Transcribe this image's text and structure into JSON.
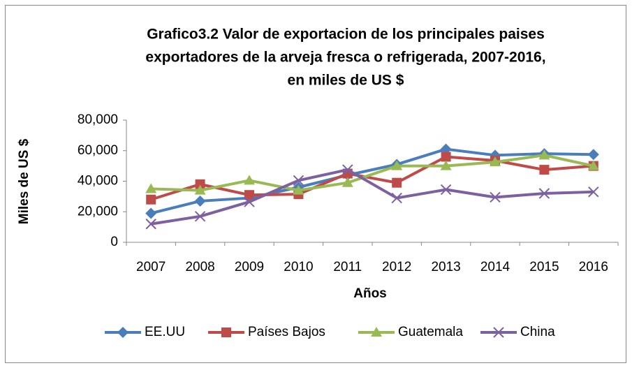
{
  "chart_data": {
    "type": "line",
    "title": [
      "Grafico3.2 Valor de exportacion de los principales paises",
      "exportadores de la arveja fresca o refrigerada, 2007-2016,",
      "en miles de US $"
    ],
    "x_label": "Años",
    "y_label": "Miles de US $",
    "categories": [
      "2007",
      "2008",
      "2009",
      "2010",
      "2011",
      "2012",
      "2013",
      "2014",
      "2015",
      "2016"
    ],
    "series": [
      {
        "name": "EE.UU",
        "color": "#4a7ebb",
        "marker": "diamond",
        "values": [
          19000,
          27000,
          29000,
          36000,
          44000,
          51000,
          61000,
          57000,
          58000,
          57500
        ]
      },
      {
        "name": "Países Bajos",
        "color": "#be4b48",
        "marker": "square",
        "values": [
          28000,
          38000,
          31000,
          31500,
          45000,
          39000,
          56000,
          53500,
          47500,
          50000
        ]
      },
      {
        "name": "Guatemala",
        "color": "#98b954",
        "marker": "triangle",
        "values": [
          35000,
          34000,
          40500,
          34000,
          39000,
          50000,
          50000,
          52500,
          57000,
          50000
        ]
      },
      {
        "name": "China",
        "color": "#7d60a0",
        "marker": "x",
        "values": [
          12000,
          17000,
          26500,
          40500,
          47500,
          29000,
          34500,
          29500,
          32000,
          33000
        ]
      }
    ],
    "ylim": [
      0,
      80000
    ],
    "yticks": [
      0,
      {
        "value": 20000,
        "label": "20,000"
      },
      {
        "value": 40000,
        "label": "40,000"
      },
      {
        "value": 60000,
        "label": "60,000"
      },
      {
        "value": 80000,
        "label": "80,000"
      }
    ],
    "grid": false,
    "legend": "bottom"
  }
}
